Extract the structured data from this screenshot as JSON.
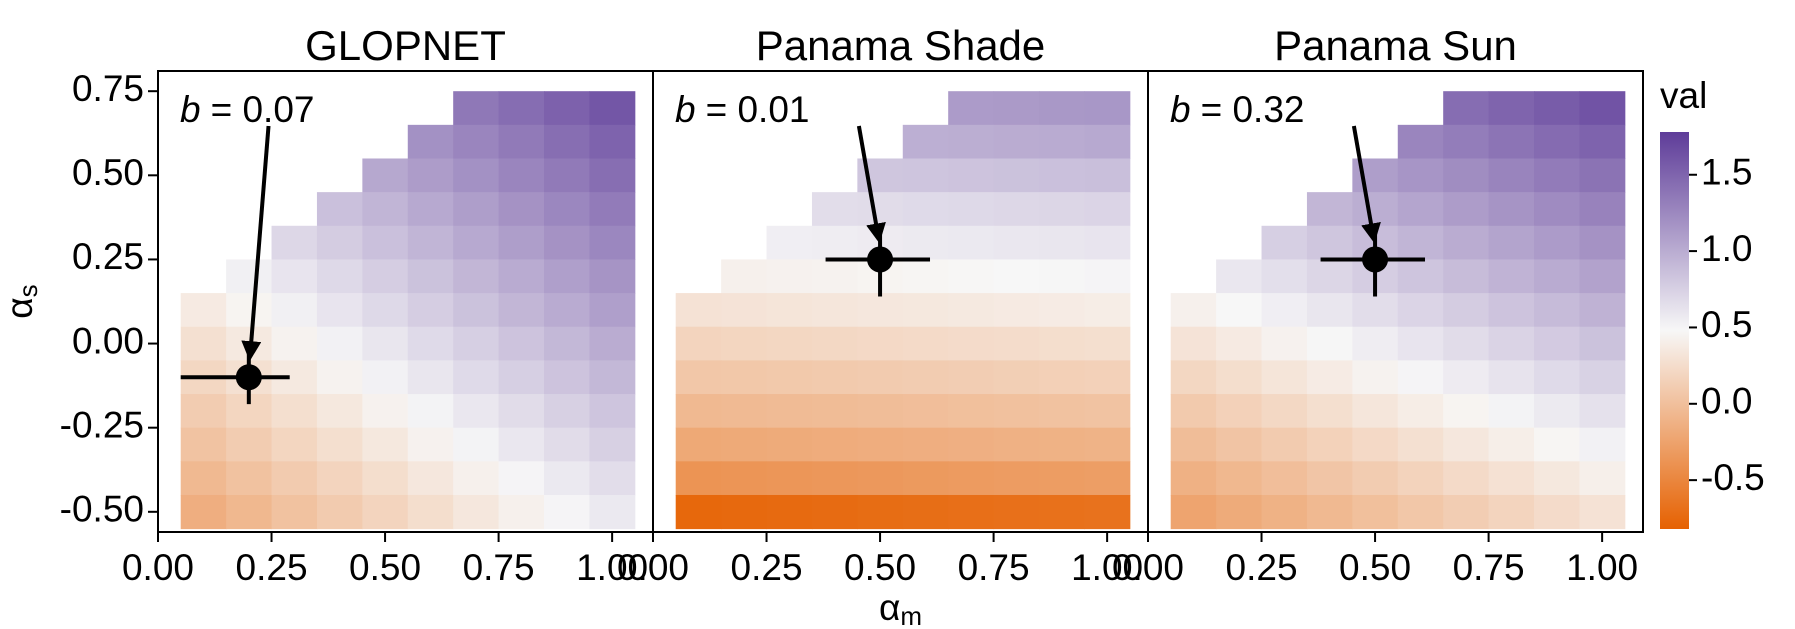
{
  "chart_data": [
    {
      "type": "heatmap",
      "title": "GLOPNET",
      "ylabel": {
        "symbol": "α",
        "subscript": "s"
      },
      "x": [
        0.1,
        0.2,
        0.3,
        0.4,
        0.5,
        0.6,
        0.7,
        0.8,
        0.9,
        1.0
      ],
      "y": [
        0.7,
        0.6,
        0.5,
        0.4,
        0.3,
        0.2,
        0.1,
        0.0,
        -0.1,
        -0.2,
        -0.3,
        -0.4,
        -0.5
      ],
      "z": [
        [
          null,
          null,
          null,
          null,
          null,
          null,
          1.36,
          1.44,
          1.52,
          1.6
        ],
        [
          null,
          null,
          null,
          null,
          null,
          1.19,
          1.27,
          1.35,
          1.43,
          1.51
        ],
        [
          null,
          null,
          null,
          null,
          1.03,
          1.11,
          1.19,
          1.27,
          1.35,
          1.43
        ],
        [
          null,
          null,
          null,
          0.86,
          0.94,
          1.02,
          1.1,
          1.18,
          1.26,
          1.34
        ],
        [
          null,
          null,
          0.7,
          0.78,
          0.86,
          0.94,
          1.02,
          1.1,
          1.18,
          1.26
        ],
        [
          null,
          0.53,
          0.61,
          0.69,
          0.77,
          0.85,
          0.93,
          1.01,
          1.09,
          1.17
        ],
        [
          0.37,
          0.45,
          0.53,
          0.61,
          0.69,
          0.77,
          0.85,
          0.93,
          1.01,
          1.09
        ],
        [
          0.28,
          0.36,
          0.44,
          0.52,
          0.6,
          0.68,
          0.76,
          0.84,
          0.92,
          1.0
        ],
        [
          0.2,
          0.28,
          0.36,
          0.44,
          0.52,
          0.6,
          0.68,
          0.76,
          0.84,
          0.92
        ],
        [
          0.11,
          0.19,
          0.27,
          0.35,
          0.43,
          0.51,
          0.59,
          0.67,
          0.75,
          0.83
        ],
        [
          0.03,
          0.11,
          0.19,
          0.27,
          0.35,
          0.43,
          0.51,
          0.59,
          0.67,
          0.75
        ],
        [
          -0.06,
          0.02,
          0.1,
          0.18,
          0.26,
          0.34,
          0.42,
          0.5,
          0.58,
          0.66
        ],
        [
          -0.15,
          -0.07,
          0.02,
          0.1,
          0.18,
          0.26,
          0.34,
          0.42,
          0.5,
          0.58
        ]
      ],
      "point": {
        "x": 0.2,
        "y": -0.1,
        "xrange": [
          0.05,
          0.29
        ],
        "yrange": [
          -0.18,
          0.0
        ]
      },
      "annotation": {
        "symbol": "b",
        "text": "= 0.07"
      },
      "xlim": [
        0,
        1.09
      ],
      "ylim": [
        -0.56,
        0.81
      ],
      "xticks": [
        {
          "value": 0,
          "label": "0.00"
        },
        {
          "value": 0.25,
          "label": "0.25"
        },
        {
          "value": 0.5,
          "label": "0.50"
        },
        {
          "value": 0.75,
          "label": "0.75"
        },
        {
          "value": 1,
          "label": "1.00"
        }
      ],
      "yticks": [
        {
          "value": -0.5,
          "label": "-0.50"
        },
        {
          "value": -0.25,
          "label": "-0.25"
        },
        {
          "value": 0,
          "label": "0.00"
        },
        {
          "value": 0.25,
          "label": "0.25"
        },
        {
          "value": 0.5,
          "label": "0.50"
        },
        {
          "value": 0.75,
          "label": "0.75"
        }
      ]
    },
    {
      "type": "heatmap",
      "title": "Panama Shade",
      "xlabel": {
        "symbol": "α",
        "subscript": "m"
      },
      "x": [
        0.1,
        0.2,
        0.3,
        0.4,
        0.5,
        0.6,
        0.7,
        0.8,
        0.9,
        1.0
      ],
      "y": [
        0.7,
        0.6,
        0.5,
        0.4,
        0.3,
        0.2,
        0.1,
        0.0,
        -0.1,
        -0.2,
        -0.3,
        -0.4,
        -0.5
      ],
      "z": [
        [
          null,
          null,
          null,
          null,
          null,
          null,
          1.12,
          1.13,
          1.14,
          1.15
        ],
        [
          null,
          null,
          null,
          null,
          null,
          0.98,
          0.99,
          1.0,
          1.01,
          1.02
        ],
        [
          null,
          null,
          null,
          null,
          0.82,
          0.83,
          0.84,
          0.85,
          0.86,
          0.87
        ],
        [
          null,
          null,
          null,
          0.66,
          0.67,
          0.68,
          0.69,
          0.7,
          0.71,
          0.72
        ],
        [
          null,
          null,
          0.54,
          0.55,
          0.56,
          0.57,
          0.58,
          0.59,
          0.6,
          0.61
        ],
        [
          null,
          0.42,
          0.43,
          0.44,
          0.45,
          0.46,
          0.47,
          0.48,
          0.49,
          0.5
        ],
        [
          0.3,
          0.31,
          0.32,
          0.33,
          0.34,
          0.35,
          0.36,
          0.37,
          0.38,
          0.39
        ],
        [
          0.18,
          0.19,
          0.2,
          0.21,
          0.22,
          0.23,
          0.24,
          0.25,
          0.26,
          0.27
        ],
        [
          0.06,
          0.07,
          0.08,
          0.09,
          0.1,
          0.11,
          0.12,
          0.13,
          0.14,
          0.15
        ],
        [
          -0.06,
          -0.05,
          -0.04,
          -0.03,
          -0.02,
          -0.01,
          0.0,
          0.01,
          0.02,
          0.03
        ],
        [
          -0.2,
          -0.19,
          -0.18,
          -0.17,
          -0.16,
          -0.15,
          -0.14,
          -0.13,
          -0.12,
          -0.11
        ],
        [
          -0.38,
          -0.37,
          -0.36,
          -0.35,
          -0.34,
          -0.33,
          -0.32,
          -0.31,
          -0.3,
          -0.29
        ],
        [
          -0.76,
          -0.75,
          -0.74,
          -0.73,
          -0.72,
          -0.71,
          -0.7,
          -0.69,
          -0.68,
          -0.67
        ]
      ],
      "point": {
        "x": 0.5,
        "y": 0.25,
        "xrange": [
          0.38,
          0.61
        ],
        "yrange": [
          0.14,
          0.35
        ]
      },
      "annotation": {
        "symbol": "b",
        "text": "= 0.01"
      },
      "xlim": [
        0,
        1.09
      ],
      "ylim": [
        -0.56,
        0.81
      ],
      "xticks": [
        {
          "value": 0,
          "label": "0.00"
        },
        {
          "value": 0.25,
          "label": "0.25"
        },
        {
          "value": 0.5,
          "label": "0.50"
        },
        {
          "value": 0.75,
          "label": "0.75"
        },
        {
          "value": 1,
          "label": "1.00"
        }
      ]
    },
    {
      "type": "heatmap",
      "title": "Panama Sun",
      "x": [
        0.1,
        0.2,
        0.3,
        0.4,
        0.5,
        0.6,
        0.7,
        0.8,
        0.9,
        1.0
      ],
      "y": [
        0.7,
        0.6,
        0.5,
        0.4,
        0.3,
        0.2,
        0.1,
        0.0,
        -0.1,
        -0.2,
        -0.3,
        -0.4,
        -0.5
      ],
      "z": [
        [
          null,
          null,
          null,
          null,
          null,
          null,
          1.44,
          1.5,
          1.56,
          1.62
        ],
        [
          null,
          null,
          null,
          null,
          null,
          1.27,
          1.33,
          1.39,
          1.45,
          1.51
        ],
        [
          null,
          null,
          null,
          null,
          1.1,
          1.16,
          1.22,
          1.28,
          1.34,
          1.4
        ],
        [
          null,
          null,
          null,
          0.93,
          0.99,
          1.05,
          1.11,
          1.17,
          1.23,
          1.29
        ],
        [
          null,
          null,
          0.76,
          0.82,
          0.88,
          0.94,
          1.0,
          1.06,
          1.12,
          1.18
        ],
        [
          null,
          0.59,
          0.65,
          0.71,
          0.77,
          0.83,
          0.89,
          0.95,
          1.01,
          1.07
        ],
        [
          0.42,
          0.48,
          0.54,
          0.6,
          0.66,
          0.72,
          0.78,
          0.84,
          0.9,
          0.96
        ],
        [
          0.31,
          0.37,
          0.43,
          0.49,
          0.55,
          0.61,
          0.67,
          0.73,
          0.79,
          0.85
        ],
        [
          0.2,
          0.26,
          0.32,
          0.38,
          0.44,
          0.5,
          0.56,
          0.62,
          0.68,
          0.74
        ],
        [
          0.09,
          0.15,
          0.21,
          0.27,
          0.33,
          0.39,
          0.45,
          0.51,
          0.57,
          0.63
        ],
        [
          -0.02,
          0.04,
          0.1,
          0.16,
          0.22,
          0.28,
          0.34,
          0.4,
          0.46,
          0.52
        ],
        [
          -0.13,
          -0.07,
          -0.01,
          0.05,
          0.11,
          0.17,
          0.23,
          0.29,
          0.35,
          0.41
        ],
        [
          -0.24,
          -0.18,
          -0.12,
          -0.06,
          0.0,
          0.06,
          0.12,
          0.18,
          0.24,
          0.3
        ]
      ],
      "point": {
        "x": 0.5,
        "y": 0.25,
        "xrange": [
          0.38,
          0.61
        ],
        "yrange": [
          0.14,
          0.35
        ]
      },
      "annotation": {
        "symbol": "b",
        "text": "= 0.32"
      },
      "xlim": [
        0,
        1.09
      ],
      "ylim": [
        -0.56,
        0.81
      ],
      "xticks": [
        {
          "value": 0,
          "label": "0.00"
        },
        {
          "value": 0.25,
          "label": "0.25"
        },
        {
          "value": 0.5,
          "label": "0.50"
        },
        {
          "value": 0.75,
          "label": "0.75"
        },
        {
          "value": 1,
          "label": "1.00"
        }
      ]
    }
  ],
  "colorbar": {
    "title": "val",
    "lim": [
      -0.82,
      1.78
    ],
    "ticks": [
      {
        "value": -0.5,
        "label": "-0.5"
      },
      {
        "value": 0,
        "label": "0.0"
      },
      {
        "value": 0.5,
        "label": "0.5"
      },
      {
        "value": 1,
        "label": "1.0"
      },
      {
        "value": 1.5,
        "label": "1.5"
      }
    ],
    "colors": [
      "#e66101",
      "#f7f7f7",
      "#5e3c99"
    ]
  }
}
